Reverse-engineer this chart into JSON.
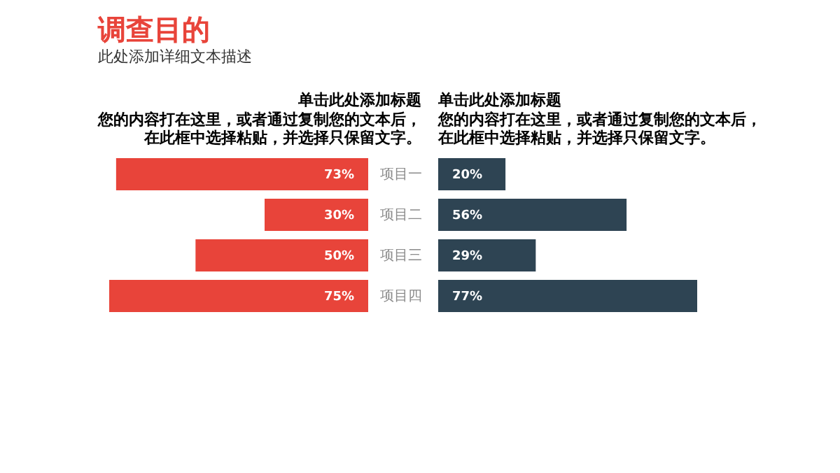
{
  "chart_data": [
    {
      "type": "other",
      "title": "调查目的",
      "subtitle": "此处添加详细文本描述"
    },
    {
      "type": "bar",
      "orientation": "horizontal",
      "title": "单击此处添加标题",
      "subtitle": "您的内容打在这里，或者通过复制您的文本后，",
      "annotations": [
        "在此框中选择粘贴，并选择只保留文字。"
      ],
      "categories": [
        "项目一",
        "项目二",
        "项目三",
        "项目四"
      ],
      "values": [
        73,
        30,
        50,
        75
      ],
      "value_labels": [
        "73%",
        "30%",
        "50%",
        "75%"
      ],
      "color": "#e8443a",
      "tick_labels": "y"
    },
    {
      "type": "bar",
      "orientation": "horizontal",
      "title": "单击此处添加标题",
      "subtitle": "您的内容打在这里，或者通过复制您的文本后，",
      "annotations": [
        "在此框中选择粘贴，并选择只保留文字。"
      ],
      "categories": [
        null,
        null,
        null,
        null
      ],
      "values": [
        20,
        56,
        29,
        77
      ],
      "value_labels": [
        "20%",
        "56%",
        "29%",
        "77%"
      ],
      "color": "#2e4453",
      "tick_labels": false
    }
  ]
}
